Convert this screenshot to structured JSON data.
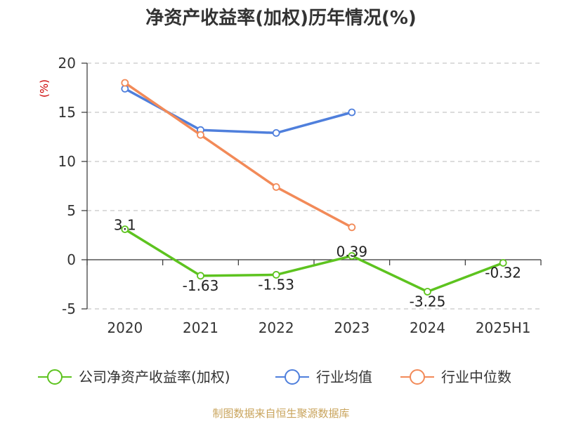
{
  "chart_data": {
    "type": "line",
    "title": "净资产收益率(加权)历年情况(%)",
    "ylabel": "(%)",
    "xlabel": "",
    "categories": [
      "2020",
      "2021",
      "2022",
      "2023",
      "2024",
      "2025H1"
    ],
    "ylim": [
      -5,
      20
    ],
    "yticks": [
      20,
      15,
      10,
      5,
      0,
      -5
    ],
    "grid": true,
    "legend_position": "bottom",
    "series": [
      {
        "name": "公司净资产收益率(加权)",
        "color": "#5dc31f",
        "values": [
          3.1,
          -1.63,
          -1.53,
          0.39,
          -3.25,
          -0.32
        ],
        "labels": [
          "3.1",
          "-1.63",
          "-1.53",
          "0.39",
          "-3.25",
          "-0.32"
        ]
      },
      {
        "name": "行业均值",
        "color": "#4f7fdc",
        "values": [
          17.4,
          13.2,
          12.9,
          15.0,
          null,
          null
        ]
      },
      {
        "name": "行业中位数",
        "color": "#f28a58",
        "values": [
          18.0,
          12.7,
          7.4,
          3.3,
          null,
          null
        ]
      }
    ]
  },
  "footer": {
    "source": "制图数据来自恒生聚源数据库"
  },
  "colors": {
    "title": "#333333",
    "ylabel": "#cc0000",
    "source": "#c9a45c",
    "axis": "#333333",
    "grid": "#c8c8c8"
  }
}
